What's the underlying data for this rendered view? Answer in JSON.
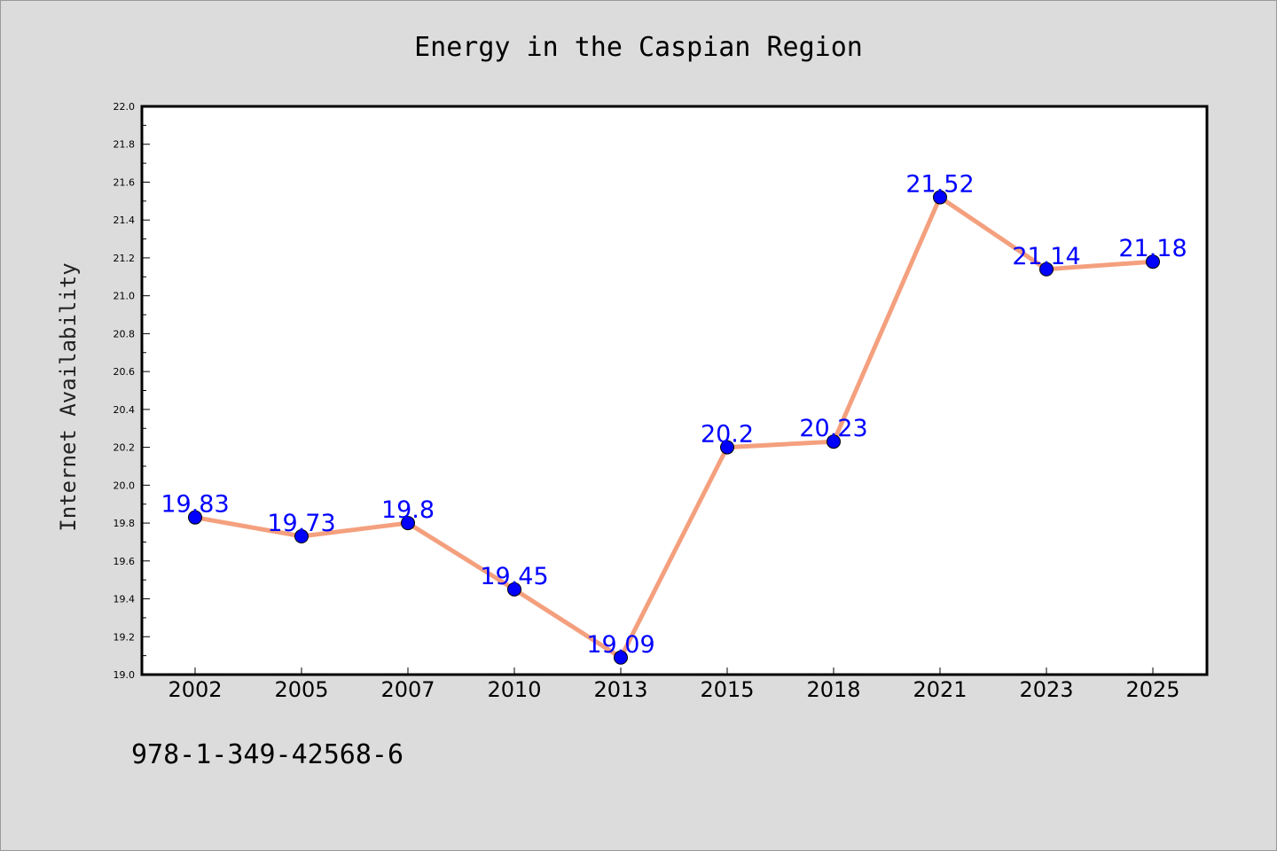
{
  "chart_data": {
    "type": "line",
    "title": "Energy in the Caspian Region",
    "xlabel": "",
    "ylabel": "Internet Availability",
    "categories": [
      "2002",
      "2005",
      "2007",
      "2010",
      "2013",
      "2015",
      "2018",
      "2021",
      "2023",
      "2025"
    ],
    "series": [
      {
        "values": [
          19.83,
          19.73,
          19.8,
          19.45,
          19.09,
          20.2,
          20.23,
          21.52,
          21.14,
          21.18
        ],
        "data_labels": [
          "19.83",
          "19.73",
          "19.8",
          "19.45",
          "19.09",
          "20.2",
          "20.23",
          "21.52",
          "21.14",
          "21.18"
        ],
        "line_color": "#f4a07e",
        "marker_color": "#0000ff"
      }
    ],
    "ylim": [
      19.0,
      22.0
    ],
    "yticks": [
      "19.0",
      "19.2",
      "19.4",
      "19.6",
      "19.8",
      "20.0",
      "20.2",
      "20.4",
      "20.6",
      "20.8",
      "21.0",
      "21.2",
      "21.4",
      "21.6",
      "21.8",
      "22.0"
    ],
    "grid": false,
    "legend": "none",
    "plot_background": "#ffffff",
    "figure_background": "#dcdcdc"
  },
  "footer": {
    "isbn": "978-1-349-42568-6"
  }
}
